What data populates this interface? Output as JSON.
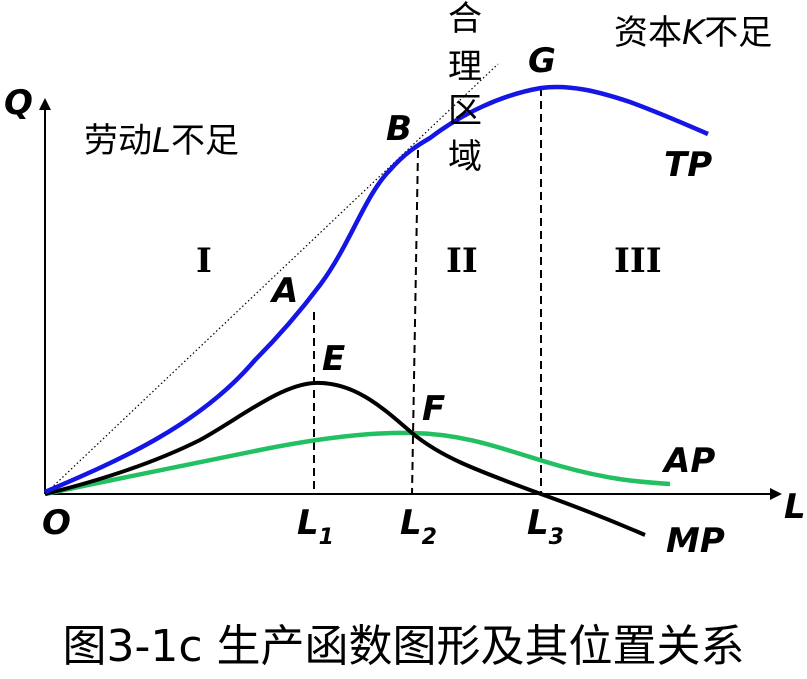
{
  "axes": {
    "y_label": "Q",
    "x_label": "L",
    "origin_label": "O"
  },
  "curves": {
    "tp": {
      "label": "TP",
      "color": "#1515e6"
    },
    "mp": {
      "label": "MP",
      "color": "#000000"
    },
    "ap": {
      "label": "AP",
      "color": "#22c063"
    },
    "tangent": {
      "color": "#000000"
    }
  },
  "points": {
    "A": "A",
    "B": "B",
    "G": "G",
    "E": "E",
    "F": "F"
  },
  "x_markers": {
    "L1": {
      "base": "L",
      "sub": "1"
    },
    "L2": {
      "base": "L",
      "sub": "2"
    },
    "L3": {
      "base": "L",
      "sub": "3"
    }
  },
  "regions": {
    "stage1": "I",
    "stage2": "II",
    "stage3": "III",
    "labor_short": {
      "pre": "劳动",
      "var": "L",
      "post": "不足"
    },
    "capital_short": {
      "pre": "资本",
      "var": "K",
      "post": "不足"
    },
    "rational_zone": [
      "合",
      "理",
      "区",
      "域"
    ]
  },
  "caption": "图3-1c  生产函数图形及其位置关系"
}
